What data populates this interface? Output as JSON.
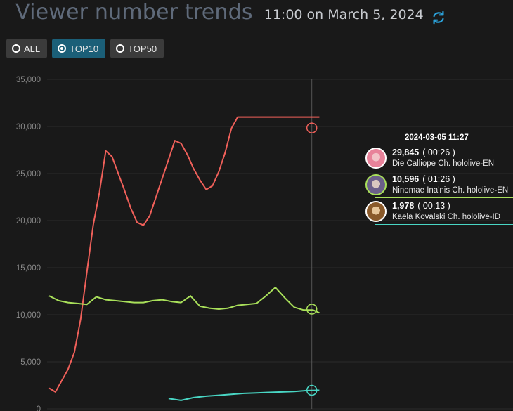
{
  "header": {
    "title": "Viewer number trends",
    "time": "11:00 on March 5, 2024"
  },
  "filters": [
    {
      "label": "ALL",
      "selected": false
    },
    {
      "label": "TOP10",
      "selected": true
    },
    {
      "label": "TOP50",
      "selected": false
    }
  ],
  "colors": {
    "background": "#191919",
    "accent": "#1b5f78",
    "refresh": "#2b9fd6"
  },
  "chart_data": {
    "type": "line",
    "ylim": [
      0,
      35000
    ],
    "yticks": [
      "0",
      "5,000",
      "10,000",
      "15,000",
      "20,000",
      "25,000",
      "30,000",
      "35,000"
    ],
    "xlim": [
      0,
      100
    ],
    "crosshair_x": 83.6,
    "grid": true,
    "series": [
      {
        "name": "Die Calliope Ch. hololive-EN",
        "color": "#f0605a",
        "x": [
          0,
          2,
          4,
          6,
          8,
          10,
          12,
          14,
          16,
          18,
          20,
          22,
          24,
          26,
          28,
          30,
          32,
          34,
          36,
          38,
          40,
          42,
          44,
          46,
          48,
          50,
          52,
          54,
          56,
          58,
          60,
          62,
          64,
          66,
          68,
          70,
          72,
          74,
          76,
          78,
          80,
          82,
          84,
          86
        ],
        "y": [
          2200,
          1800,
          3000,
          4200,
          6000,
          9500,
          14500,
          19500,
          23000,
          27400,
          26800,
          25000,
          23200,
          21300,
          19800,
          19500,
          20500,
          22500,
          24500,
          26500,
          28500,
          28200,
          27000,
          25500,
          24300,
          23300,
          23700,
          25200,
          27200,
          29800,
          31000,
          31000,
          31000,
          31000,
          31000,
          31000,
          31000,
          31000,
          31000,
          31000,
          31000,
          31000,
          31000,
          31000
        ]
      },
      {
        "name": "Ninomae Ina'nis Ch. hololive-EN",
        "color": "#a9e05a",
        "x": [
          0,
          3,
          6,
          9,
          12,
          15,
          18,
          21,
          24,
          27,
          30,
          33,
          36,
          39,
          42,
          45,
          48,
          51,
          54,
          57,
          60,
          63,
          66,
          69,
          72,
          75,
          78,
          81,
          84,
          86
        ],
        "y": [
          12000,
          11500,
          11300,
          11200,
          11100,
          11900,
          11600,
          11500,
          11400,
          11300,
          11300,
          11500,
          11600,
          11400,
          11300,
          12000,
          10900,
          10700,
          10600,
          10700,
          11000,
          11100,
          11200,
          12000,
          12900,
          11800,
          10800,
          10500,
          10500,
          10200
        ]
      },
      {
        "name": "Kaela Kovalski Ch. hololive-ID",
        "color": "#49d6c4",
        "x": [
          38,
          42,
          46,
          50,
          54,
          58,
          62,
          66,
          70,
          74,
          78,
          82,
          86
        ],
        "y": [
          1100,
          900,
          1200,
          1350,
          1450,
          1550,
          1650,
          1700,
          1750,
          1800,
          1850,
          1950,
          1980
        ]
      }
    ],
    "tooltip": {
      "time": "2024-03-05 11:27",
      "items": [
        {
          "value": "29,845",
          "duration": "( 00:26 )",
          "name": "Die Calliope Ch. hololive-EN",
          "color": "#f0605a",
          "avatar_color": "#e8829a"
        },
        {
          "value": "10,596",
          "duration": "( 01:26 )",
          "name": "Ninomae Ina'nis Ch. hololive-EN",
          "color": "#a9e05a",
          "avatar_color": "#6b5f8a"
        },
        {
          "value": "1,978",
          "duration": "( 00:13 )",
          "name": "Kaela Kovalski Ch. hololive-ID",
          "color": "#49d6c4",
          "avatar_color": "#c68a3a"
        }
      ],
      "markers": [
        29845,
        10596,
        1978
      ]
    }
  }
}
